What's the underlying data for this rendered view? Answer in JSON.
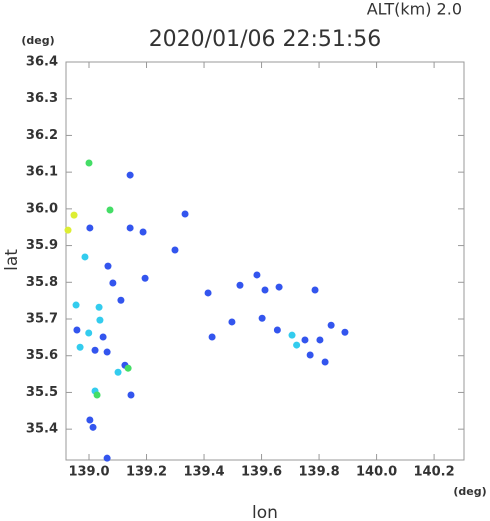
{
  "chart_data": {
    "type": "scatter",
    "title": "2020/01/06 22:51:56",
    "annotation": "ALT(km) 2.0",
    "x_label": "lon",
    "y_label": "lat",
    "x_unit": "(deg)",
    "y_unit": "(deg)",
    "xlim": [
      138.92,
      140.304
    ],
    "ylim": [
      35.316,
      36.4
    ],
    "xticks": [
      {
        "value": 139.0,
        "label": "139.0"
      },
      139.2,
      139.4,
      139.6,
      139.8,
      {
        "value": 140.0,
        "label": "140.0"
      },
      140.2
    ],
    "yticks": [
      36.4,
      36.3,
      36.2,
      36.1,
      {
        "value": 36.0,
        "label": "36.0"
      },
      35.9,
      35.8,
      35.7,
      35.6,
      35.5,
      35.4
    ],
    "x": [
      139.0,
      139.143,
      138.948,
      139.073,
      138.927,
      139.003,
      139.143,
      139.188,
      139.334,
      138.986,
      139.066,
      139.083,
      139.195,
      139.299,
      138.955,
      139.035,
      139.111,
      138.958,
      138.999,
      139.038,
      138.969,
      139.021,
      139.063,
      139.049,
      139.125,
      139.101,
      139.136,
      139.021,
      139.028,
      139.146,
      139.003,
      139.014,
      139.063,
      139.414,
      139.428,
      139.497,
      139.525,
      139.584,
      139.612,
      139.661,
      139.602,
      139.706,
      139.722,
      139.786,
      139.751,
      139.803,
      139.842,
      139.89,
      139.821,
      139.769,
      139.655
    ],
    "y": [
      36.125,
      36.092,
      35.983,
      35.997,
      35.942,
      35.948,
      35.948,
      35.937,
      35.986,
      35.869,
      35.844,
      35.798,
      35.811,
      35.888,
      35.738,
      35.732,
      35.751,
      35.67,
      35.662,
      35.697,
      35.623,
      35.615,
      35.61,
      35.651,
      35.574,
      35.555,
      35.566,
      35.504,
      35.493,
      35.493,
      35.425,
      35.405,
      35.321,
      35.771,
      35.651,
      35.692,
      35.792,
      35.82,
      35.779,
      35.787,
      35.702,
      35.656,
      35.629,
      35.779,
      35.643,
      35.643,
      35.683,
      35.664,
      35.583,
      35.602,
      35.67
    ],
    "colors": [
      "#44dd66",
      "#3355ee",
      "#ddee33",
      "#44dd66",
      "#ddee33",
      "#3355ee",
      "#3355ee",
      "#3355ee",
      "#3355ee",
      "#33ccee",
      "#3355ee",
      "#3355ee",
      "#3355ee",
      "#3355ee",
      "#33ccee",
      "#33ccee",
      "#3355ee",
      "#3355ee",
      "#33ccee",
      "#33ccee",
      "#33ccee",
      "#3355ee",
      "#3355ee",
      "#3355ee",
      "#3355ee",
      "#33ccee",
      "#44dd66",
      "#33ccee",
      "#44dd66",
      "#3355ee",
      "#3355ee",
      "#3355ee",
      "#3355ee",
      "#3355ee",
      "#3355ee",
      "#3355ee",
      "#3355ee",
      "#3355ee",
      "#3355ee",
      "#3355ee",
      "#3355ee",
      "#33ccee",
      "#33ccee",
      "#3355ee",
      "#3355ee",
      "#3355ee",
      "#3355ee",
      "#3355ee",
      "#3355ee",
      "#3355ee",
      "#3355ee"
    ]
  }
}
